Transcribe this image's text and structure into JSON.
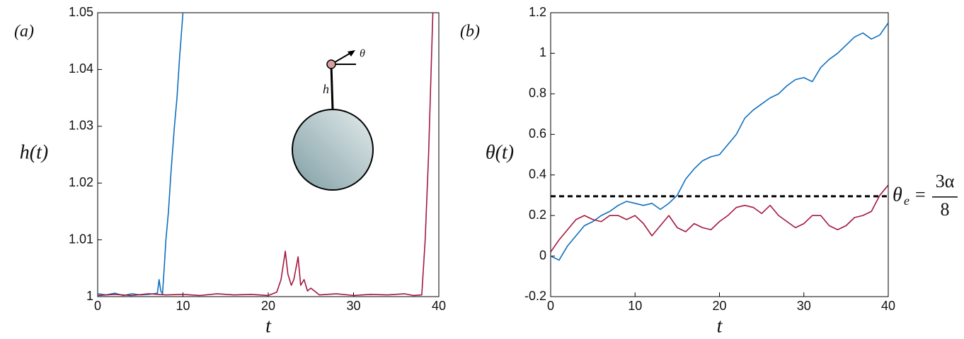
{
  "chart_data": [
    {
      "type": "line",
      "panel_label": "(a)",
      "ylabel": "h(t)",
      "xlabel": "t",
      "xlim": [
        0,
        40
      ],
      "xticks": [
        0,
        10,
        20,
        30,
        40
      ],
      "ylim": [
        1,
        1.05
      ],
      "yticks": [
        1,
        1.01,
        1.02,
        1.03,
        1.04,
        1.05
      ],
      "inset": {
        "h_label": "h",
        "theta_label": "θ"
      },
      "series": [
        {
          "color": "#0f6fbf",
          "x": [
            0,
            1,
            2,
            3,
            4,
            5,
            6,
            7,
            7.2,
            7.4,
            7.6,
            7.8,
            8,
            8.3,
            8.6,
            9,
            9.3,
            9.6,
            10
          ],
          "values": [
            1.0005,
            1.0003,
            1.0006,
            1.0002,
            1.0005,
            1.0003,
            1.0004,
            1.0006,
            1.003,
            1.001,
            1.0005,
            1.005,
            1.01,
            1.015,
            1.022,
            1.03,
            1.035,
            1.042,
            1.05
          ]
        },
        {
          "color": "#a3193f",
          "x": [
            0,
            2,
            4,
            6,
            8,
            10,
            12,
            14,
            16,
            18,
            20,
            21,
            21.5,
            22,
            22.3,
            22.7,
            23,
            23.5,
            23.8,
            24.2,
            24.6,
            25,
            26,
            28,
            30,
            32,
            34,
            36,
            37,
            38,
            38.4,
            38.8,
            39.1,
            39.3
          ],
          "values": [
            1.0002,
            1.0004,
            1.0002,
            1.0005,
            1.0003,
            1.0004,
            1.0002,
            1.0005,
            1.0003,
            1.0004,
            1.0002,
            1.0008,
            1.003,
            1.008,
            1.004,
            1.002,
            1.003,
            1.007,
            1.002,
            1.003,
            1.001,
            1.0015,
            1.0003,
            1.0005,
            1.0002,
            1.0004,
            1.0003,
            1.0005,
            1.0002,
            1.0003,
            1.01,
            1.025,
            1.04,
            1.05
          ]
        }
      ]
    },
    {
      "type": "line",
      "panel_label": "(b)",
      "ylabel": "θ(t)",
      "xlabel": "t",
      "xlim": [
        0,
        40
      ],
      "xticks": [
        0,
        10,
        20,
        30,
        40
      ],
      "ylim": [
        -0.2,
        1.2
      ],
      "yticks": [
        -0.2,
        0,
        0.2,
        0.4,
        0.6,
        0.8,
        1,
        1.2
      ],
      "reference_line": {
        "value": 0.295,
        "color": "#000000",
        "lhs": "θ",
        "sub": "e",
        "eq": "=",
        "num": "3α",
        "den": "8"
      },
      "series": [
        {
          "color": "#0f6fbf",
          "x": [
            0,
            1,
            2,
            3,
            4,
            5,
            6,
            7,
            8,
            9,
            10,
            11,
            12,
            13,
            14,
            15,
            16,
            17,
            18,
            19,
            20,
            21,
            22,
            23,
            24,
            25,
            26,
            27,
            28,
            29,
            30,
            31,
            32,
            33,
            34,
            35,
            36,
            37,
            38,
            39,
            40
          ],
          "values": [
            0,
            -0.02,
            0.05,
            0.1,
            0.15,
            0.17,
            0.2,
            0.22,
            0.25,
            0.27,
            0.26,
            0.25,
            0.26,
            0.23,
            0.26,
            0.3,
            0.38,
            0.43,
            0.47,
            0.49,
            0.5,
            0.55,
            0.6,
            0.68,
            0.72,
            0.75,
            0.78,
            0.8,
            0.84,
            0.87,
            0.88,
            0.86,
            0.93,
            0.97,
            1.0,
            1.04,
            1.08,
            1.1,
            1.07,
            1.09,
            1.15
          ]
        },
        {
          "color": "#a3193f",
          "x": [
            0,
            1,
            2,
            3,
            4,
            5,
            6,
            7,
            8,
            9,
            10,
            11,
            12,
            13,
            14,
            15,
            16,
            17,
            18,
            19,
            20,
            21,
            22,
            23,
            24,
            25,
            26,
            27,
            28,
            29,
            30,
            31,
            32,
            33,
            34,
            35,
            36,
            37,
            38,
            39,
            40
          ],
          "values": [
            0.02,
            0.08,
            0.13,
            0.18,
            0.2,
            0.18,
            0.17,
            0.2,
            0.2,
            0.18,
            0.2,
            0.16,
            0.1,
            0.15,
            0.2,
            0.14,
            0.12,
            0.16,
            0.14,
            0.13,
            0.17,
            0.2,
            0.24,
            0.25,
            0.24,
            0.21,
            0.25,
            0.2,
            0.17,
            0.14,
            0.16,
            0.2,
            0.2,
            0.15,
            0.13,
            0.15,
            0.19,
            0.2,
            0.22,
            0.3,
            0.35
          ]
        }
      ]
    }
  ]
}
